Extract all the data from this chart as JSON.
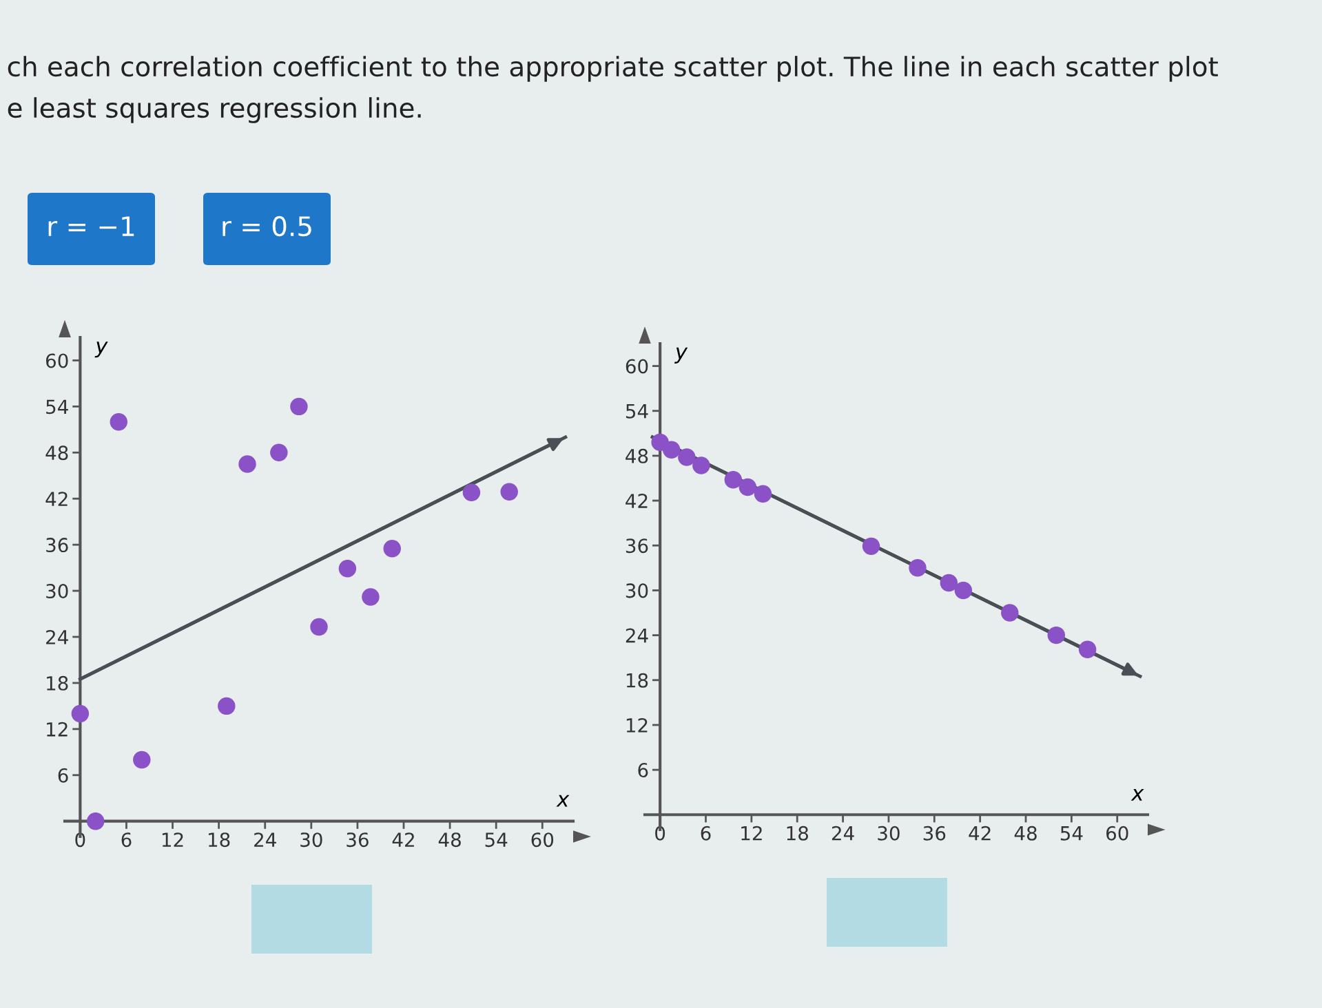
{
  "chart_data": [
    {
      "type": "other",
      "title": "ch each correlation coefficient to the appropriate scatter plot. The line in each scatter plot",
      "subtitle": "e least squares regression line.",
      "annotations": [
        "r = −1",
        "r = 0.5"
      ],
      "colors": [
        "#1f77c9",
        "#1f77c9"
      ]
    },
    {
      "type": "scatter",
      "xlabel": "x",
      "ylabel": "y",
      "xlim": [
        -2,
        64
      ],
      "ylim": [
        -2,
        63
      ],
      "xticks": [
        0,
        6,
        12,
        18,
        24,
        30,
        36,
        42,
        48,
        54,
        60
      ],
      "yticks": [
        6,
        12,
        18,
        24,
        30,
        36,
        42,
        48,
        54,
        60
      ],
      "grid": false,
      "series": [
        {
          "type": "scatter",
          "marker": "circle",
          "color": "#8a52c6",
          "x": [
            2,
            0,
            8,
            5,
            19,
            21.7,
            25.8,
            28.4,
            31,
            34.7,
            37.7,
            40.5,
            50.8,
            55.7
          ],
          "values": [
            0,
            14,
            8,
            52,
            15,
            46.5,
            48,
            54,
            25.3,
            32.9,
            29.2,
            35.5,
            42.8,
            42.9
          ]
        },
        {
          "type": "line",
          "color": "#4a4f55",
          "x": [
            0,
            63
          ],
          "values": [
            18.5,
            50
          ]
        }
      ]
    },
    {
      "type": "scatter",
      "xlabel": "x",
      "ylabel": "y",
      "xlim": [
        -2,
        64
      ],
      "ylim": [
        -2,
        63
      ],
      "xticks": [
        0,
        6,
        12,
        18,
        24,
        30,
        36,
        42,
        48,
        54,
        60
      ],
      "yticks": [
        6,
        12,
        18,
        24,
        30,
        36,
        42,
        48,
        54,
        60
      ],
      "grid": false,
      "series": [
        {
          "type": "scatter",
          "marker": "circle",
          "color": "#8a52c6",
          "x": [
            0,
            1.5,
            3.5,
            5.4,
            9.6,
            11.5,
            13.5,
            27.7,
            33.8,
            37.9,
            39.8,
            45.9,
            52,
            56.1
          ],
          "values": [
            49.8,
            48.8,
            47.8,
            46.7,
            44.8,
            43.8,
            42.9,
            35.9,
            33,
            31,
            30,
            27,
            24,
            22.1
          ]
        },
        {
          "type": "line",
          "color": "#4a4f55",
          "x": [
            -1,
            63
          ],
          "values": [
            50.5,
            18.5
          ]
        }
      ]
    }
  ]
}
